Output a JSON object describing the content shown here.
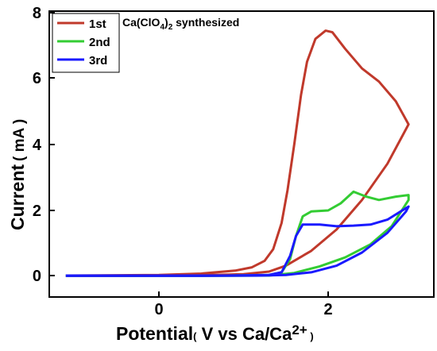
{
  "chart_data": {
    "type": "line",
    "title": "",
    "annotation": {
      "text": "Ca(ClO",
      "sub": "4",
      "rest": ")",
      "sub2": "2",
      "tail": " synthesized"
    },
    "xlabel": {
      "main": "Potential",
      "paren_open": "(",
      "small": " V vs Ca/Ca",
      "sup": "2+",
      "paren_close": " )"
    },
    "ylabel": {
      "main": "Current",
      "small": "( mA )"
    },
    "xlim": [
      -1.2,
      3.3
    ],
    "ylim": [
      -0.3,
      8.0
    ],
    "x_ticks": [
      "0",
      "2"
    ],
    "y_ticks": [
      "0",
      "2",
      "4",
      "6",
      "8"
    ],
    "legend_position": "top-left",
    "series": [
      {
        "name": "1st",
        "color": "#c0392b",
        "points": [
          [
            -1.1,
            0
          ],
          [
            -0.5,
            0.01
          ],
          [
            0,
            0.02
          ],
          [
            0.5,
            0.06
          ],
          [
            0.9,
            0.15
          ],
          [
            1.1,
            0.25
          ],
          [
            1.25,
            0.45
          ],
          [
            1.35,
            0.8
          ],
          [
            1.45,
            1.6
          ],
          [
            1.52,
            2.6
          ],
          [
            1.6,
            4.0
          ],
          [
            1.68,
            5.5
          ],
          [
            1.75,
            6.5
          ],
          [
            1.85,
            7.2
          ],
          [
            1.97,
            7.45
          ],
          [
            2.05,
            7.4
          ],
          [
            2.2,
            6.9
          ],
          [
            2.4,
            6.3
          ],
          [
            2.6,
            5.9
          ],
          [
            2.8,
            5.3
          ],
          [
            2.95,
            4.6
          ],
          [
            2.7,
            3.4
          ],
          [
            2.4,
            2.3
          ],
          [
            2.1,
            1.4
          ],
          [
            1.8,
            0.75
          ],
          [
            1.5,
            0.3
          ],
          [
            1.3,
            0.12
          ],
          [
            1.0,
            0.04
          ],
          [
            0.5,
            0.01
          ],
          [
            0,
            0
          ],
          [
            -0.5,
            -0.01
          ],
          [
            -1.1,
            -0.01
          ]
        ]
      },
      {
        "name": "2nd",
        "color": "#33cc33",
        "points": [
          [
            -1.1,
            0
          ],
          [
            -0.5,
            0
          ],
          [
            0,
            0
          ],
          [
            0.8,
            0
          ],
          [
            1.3,
            0.02
          ],
          [
            1.45,
            0.1
          ],
          [
            1.55,
            0.5
          ],
          [
            1.62,
            1.2
          ],
          [
            1.7,
            1.8
          ],
          [
            1.8,
            1.95
          ],
          [
            2.0,
            1.98
          ],
          [
            2.15,
            2.2
          ],
          [
            2.3,
            2.55
          ],
          [
            2.45,
            2.4
          ],
          [
            2.6,
            2.3
          ],
          [
            2.8,
            2.4
          ],
          [
            2.95,
            2.45
          ],
          [
            2.95,
            2.3
          ],
          [
            2.75,
            1.5
          ],
          [
            2.5,
            0.95
          ],
          [
            2.2,
            0.55
          ],
          [
            1.9,
            0.28
          ],
          [
            1.6,
            0.08
          ],
          [
            1.3,
            0
          ],
          [
            0.5,
            -0.01
          ],
          [
            -1.1,
            -0.01
          ]
        ]
      },
      {
        "name": "3rd",
        "color": "#1a1aff",
        "points": [
          [
            -1.1,
            0
          ],
          [
            -0.5,
            0
          ],
          [
            0,
            0
          ],
          [
            0.8,
            0
          ],
          [
            1.3,
            0.02
          ],
          [
            1.45,
            0.1
          ],
          [
            1.55,
            0.6
          ],
          [
            1.62,
            1.2
          ],
          [
            1.7,
            1.55
          ],
          [
            1.9,
            1.55
          ],
          [
            2.1,
            1.5
          ],
          [
            2.3,
            1.52
          ],
          [
            2.5,
            1.55
          ],
          [
            2.7,
            1.7
          ],
          [
            2.95,
            2.1
          ],
          [
            2.92,
            1.95
          ],
          [
            2.7,
            1.3
          ],
          [
            2.4,
            0.7
          ],
          [
            2.1,
            0.3
          ],
          [
            1.8,
            0.1
          ],
          [
            1.5,
            0.02
          ],
          [
            1.2,
            0
          ],
          [
            0.5,
            -0.01
          ],
          [
            -1.1,
            -0.01
          ]
        ]
      }
    ]
  }
}
